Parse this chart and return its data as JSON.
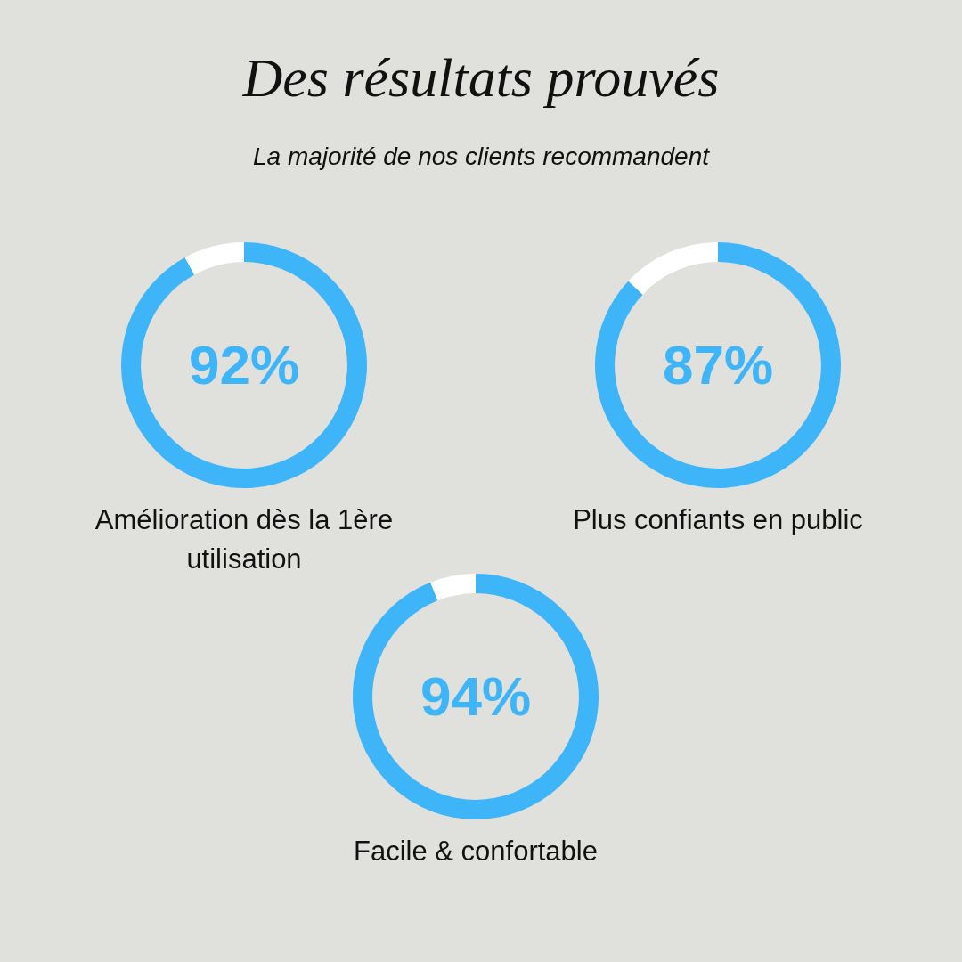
{
  "chart_data": [
    {
      "type": "other",
      "title": "Des résultats prouvés",
      "subtitle": "La majorité de nos clients recommandent"
    },
    {
      "type": "donut",
      "title": "Amélioration dès la 1ère utilisation",
      "categories": [
        null,
        null
      ],
      "values": [
        92,
        8
      ],
      "colors": [
        "#3db5f8",
        "#ffffff"
      ],
      "value_labels": [
        "92%",
        null
      ]
    },
    {
      "type": "donut",
      "title": "Plus confiants en public",
      "categories": [
        null,
        null
      ],
      "values": [
        87,
        13
      ],
      "colors": [
        "#3db5f8",
        "#ffffff"
      ],
      "value_labels": [
        "87%",
        null
      ]
    },
    {
      "type": "donut",
      "title": "Facile & confortable",
      "categories": [
        null,
        null
      ],
      "values": [
        94,
        6
      ],
      "colors": [
        "#3db5f8",
        "#ffffff"
      ],
      "value_labels": [
        "94%",
        null
      ]
    }
  ]
}
